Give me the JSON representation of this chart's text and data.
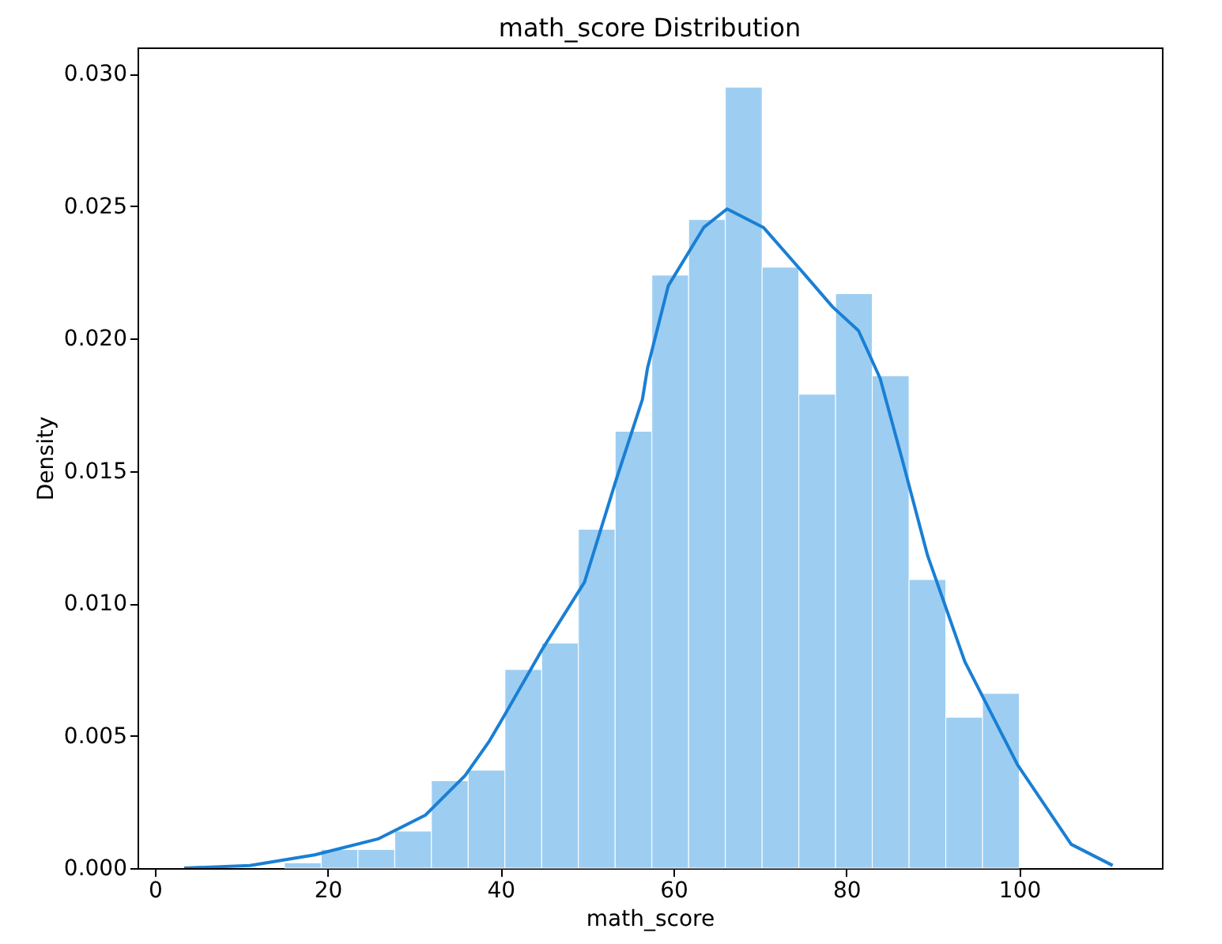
{
  "chart_data": {
    "type": "histogram",
    "title": "math_score Distribution",
    "xlabel": "math_score",
    "ylabel": "Density",
    "color": "#9dcef2",
    "bins": [
      15,
      19.25,
      23.5,
      27.75,
      32,
      36.25,
      40.5,
      44.75,
      49,
      53.25,
      57.5,
      61.75,
      66,
      70.25,
      74.5,
      78.75,
      83,
      87.25,
      91.5,
      95.75,
      100
    ],
    "values": [
      0.0002,
      0.0007,
      0.0007,
      0.0014,
      0.0033,
      0.0037,
      0.0075,
      0.0085,
      0.0128,
      0.0165,
      0.0224,
      0.0245,
      0.0295,
      0.0227,
      0.0179,
      0.0217,
      0.0186,
      0.0109,
      0.0057,
      0.0066
    ],
    "series": [
      {
        "type": "line",
        "color": "#1a7fd4",
        "x": [
          3.4,
          11,
          18.5,
          25.8,
          31.3,
          35.9,
          38.7,
          40.5,
          44.7,
          49.7,
          53.3,
          56.4,
          57,
          59.4,
          63.5,
          66.2,
          70.4,
          74.7,
          78.4,
          81.4,
          83.9,
          86.4,
          89.4,
          93.7,
          99.8,
          106,
          110.8
        ],
        "values": [
          0,
          0.0001,
          0.0005,
          0.0011,
          0.002,
          0.0035,
          0.0048,
          0.0058,
          0.0082,
          0.0108,
          0.0146,
          0.0177,
          0.0189,
          0.022,
          0.0242,
          0.0249,
          0.0242,
          0.0226,
          0.0212,
          0.0203,
          0.0185,
          0.0155,
          0.0118,
          0.0078,
          0.0039,
          0.0009,
          0.0001
        ]
      }
    ],
    "xlim": [
      -2,
      116.5
    ],
    "ylim": [
      0,
      0.031
    ],
    "xticks": [
      0,
      20,
      40,
      60,
      80,
      100
    ],
    "yticks": [
      {
        "value": 0,
        "label": "0.000"
      },
      {
        "value": 0.005,
        "label": "0.005"
      },
      {
        "value": 0.01,
        "label": "0.010"
      },
      {
        "value": 0.015,
        "label": "0.015"
      },
      {
        "value": 0.02,
        "label": "0.020"
      },
      {
        "value": 0.025,
        "label": "0.025"
      },
      {
        "value": 0.03,
        "label": "0.030"
      }
    ],
    "grid": false
  }
}
